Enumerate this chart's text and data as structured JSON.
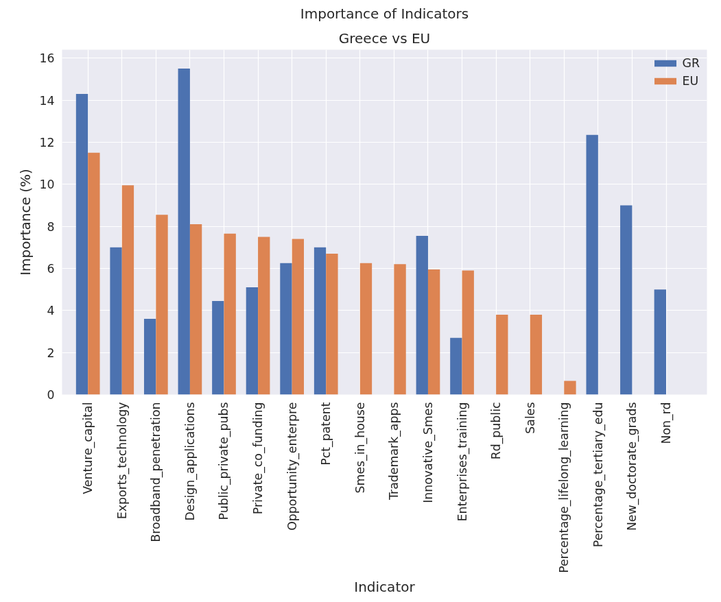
{
  "chart_data": {
    "type": "bar",
    "title": "Importance of Indicators",
    "subtitle": "Greece vs EU",
    "xlabel": "Indicator",
    "ylabel": "Importance (%)",
    "categories": [
      "Venture_capital",
      "Exports_technology",
      "Broadband_penetration",
      "Design_applications",
      "Public_private_pubs",
      "Private_co_funding",
      "Opportunity_enterpre",
      "Pct_patent",
      "Smes_in_house",
      "Trademark_apps",
      "Innovative_Smes",
      "Enterprises_training",
      "Rd_public",
      "Sales",
      "Percentage_lifelong_learning",
      "Percentage_tertiary_edu",
      "New_doctorate_grads",
      "Non_rd"
    ],
    "series": [
      {
        "name": "GR",
        "color": "#4c72b0",
        "values": [
          14.3,
          7.0,
          3.6,
          15.5,
          4.45,
          5.1,
          6.25,
          7.0,
          null,
          null,
          7.55,
          2.7,
          null,
          null,
          null,
          12.35,
          9.0,
          5.0
        ]
      },
      {
        "name": "EU",
        "color": "#dd8452",
        "values": [
          11.5,
          9.95,
          8.55,
          8.1,
          7.65,
          7.5,
          7.4,
          6.7,
          6.25,
          6.2,
          5.95,
          5.9,
          3.8,
          3.8,
          0.65,
          null,
          null,
          null
        ]
      }
    ],
    "ylim": [
      0,
      16.4
    ],
    "yticks": [
      0,
      2,
      4,
      6,
      8,
      10,
      12,
      14,
      16
    ],
    "grid": true,
    "legend": "top right"
  }
}
